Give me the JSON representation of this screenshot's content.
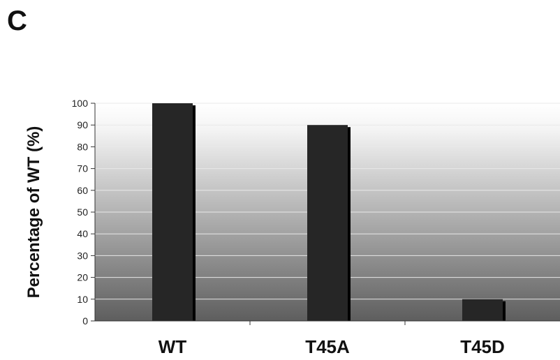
{
  "panel_label": "C",
  "chart_data": {
    "type": "bar",
    "categories": [
      "WT",
      "T45A",
      "T45D"
    ],
    "values": [
      100,
      90,
      10
    ],
    "title": "",
    "xlabel": "",
    "ylabel": "Percentage of WT (%)",
    "ylim": [
      0,
      100
    ],
    "yticks": [
      0,
      10,
      20,
      30,
      40,
      50,
      60,
      70,
      80,
      90,
      100
    ],
    "grid": true,
    "bar_color": "#262626",
    "background_gradient": [
      "#ffffff",
      "#5e5e5e"
    ]
  }
}
